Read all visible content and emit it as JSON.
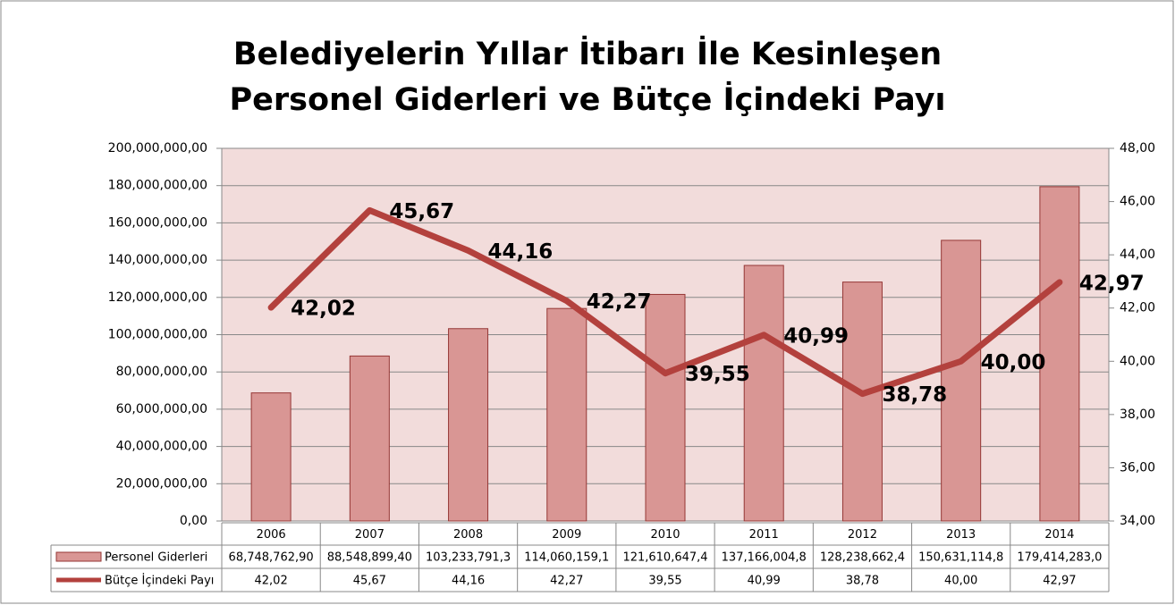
{
  "chart_data": {
    "type": "bar-line",
    "title": [
      "Belediyelerin Yıllar İtibarı İle Kesinleşen",
      "Personel Giderleri ve Bütçe İçindeki Payı"
    ],
    "categories": [
      "2006",
      "2007",
      "2008",
      "2009",
      "2010",
      "2011",
      "2012",
      "2013",
      "2014"
    ],
    "series": [
      {
        "name": "Personel Giderleri",
        "type": "bar",
        "color": "#d99694",
        "edge": "#953735",
        "values": [
          68748762.9,
          88548899.4,
          103233791.3,
          114060159.1,
          121610647.4,
          137166004.8,
          128238662.4,
          150631114.8,
          179414283.0
        ],
        "value_labels": [
          "68,748,762,90",
          "88,548,899,40",
          "103,233,791,3",
          "114,060,159,1",
          "121,610,647,4",
          "137,166,004,8",
          "128,238,662,4",
          "150,631,114,8",
          "179,414,283,0"
        ]
      },
      {
        "name": "Bütçe İçindeki Payı",
        "type": "line",
        "axis": "y2",
        "color": "#b3413d",
        "values": [
          42.02,
          45.67,
          44.16,
          42.27,
          39.55,
          40.99,
          38.78,
          40.0,
          42.97
        ],
        "value_labels": [
          "42,02",
          "45,67",
          "44,16",
          "42,27",
          "39,55",
          "40,99",
          "38,78",
          "40,00",
          "42,97"
        ]
      }
    ],
    "ylim": [
      0,
      200000000
    ],
    "yticks": [
      {
        "value": 0,
        "label": "0,00"
      },
      {
        "value": 20000000,
        "label": "20,000,000,00"
      },
      {
        "value": 40000000,
        "label": "40,000,000,00"
      },
      {
        "value": 60000000,
        "label": "60,000,000,00"
      },
      {
        "value": 80000000,
        "label": "80,000,000,00"
      },
      {
        "value": 100000000,
        "label": "100,000,000,00"
      },
      {
        "value": 120000000,
        "label": "120,000,000,00"
      },
      {
        "value": 140000000,
        "label": "140,000,000,00"
      },
      {
        "value": 160000000,
        "label": "160,000,000,00"
      },
      {
        "value": 180000000,
        "label": "180,000,000,00"
      },
      {
        "value": 200000000,
        "label": "200,000,000,00"
      }
    ],
    "y2lim": [
      34,
      48
    ],
    "y2ticks": [
      {
        "value": 34,
        "label": "34,00"
      },
      {
        "value": 36,
        "label": "36,00"
      },
      {
        "value": 38,
        "label": "38,00"
      },
      {
        "value": 40,
        "label": "40,00"
      },
      {
        "value": 42,
        "label": "42,00"
      },
      {
        "value": 44,
        "label": "44,00"
      },
      {
        "value": 46,
        "label": "46,00"
      },
      {
        "value": 48,
        "label": "48,00"
      }
    ],
    "grid": true,
    "plot_background": "#f2dcdb"
  }
}
